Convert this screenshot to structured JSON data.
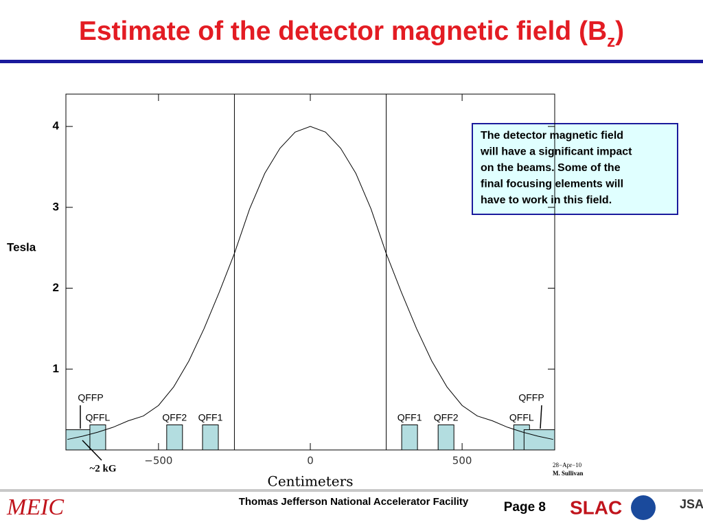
{
  "header": {
    "title": "Estimate of the detector magnetic field (B",
    "title_subscript": "z",
    "title_close": ")"
  },
  "chart_data": {
    "type": "line",
    "x": [
      -800,
      -750,
      -700,
      -650,
      -600,
      -550,
      -500,
      -450,
      -400,
      -350,
      -300,
      -250,
      -200,
      -150,
      -100,
      -50,
      0,
      50,
      100,
      150,
      200,
      250,
      300,
      350,
      400,
      450,
      500,
      550,
      600,
      650,
      700,
      750,
      800
    ],
    "values": [
      0.13,
      0.17,
      0.22,
      0.28,
      0.36,
      0.42,
      0.55,
      0.78,
      1.1,
      1.5,
      1.95,
      2.43,
      2.98,
      3.42,
      3.73,
      3.93,
      4.0,
      3.93,
      3.73,
      3.42,
      2.98,
      2.43,
      1.95,
      1.5,
      1.1,
      0.78,
      0.55,
      0.42,
      0.36,
      0.28,
      0.22,
      0.17,
      0.13
    ],
    "color": "#000000",
    "xlim": [
      -805,
      805
    ],
    "ylim": [
      0,
      4.4
    ],
    "xticks": [
      {
        "value": -500,
        "label": "−500"
      },
      0,
      500
    ],
    "yticks": [
      1,
      2,
      3,
      4
    ],
    "xlabel": "Centimeters",
    "ylabel": "Tesla",
    "vlines": [
      -250,
      250
    ],
    "magnets": [
      {
        "label": "QFFP",
        "x0": -805,
        "x1": -706,
        "height": 0.25
      },
      {
        "label": "QFFL",
        "x0": -726,
        "x1": -674,
        "height": 0.31
      },
      {
        "label": "QFF2",
        "x0": -473,
        "x1": -421,
        "height": 0.31
      },
      {
        "label": "QFF1",
        "x0": -355,
        "x1": -303,
        "height": 0.31
      },
      {
        "label": "QFF1",
        "x0": 301,
        "x1": 353,
        "height": 0.31
      },
      {
        "label": "QFF2",
        "x0": 421,
        "x1": 473,
        "height": 0.31
      },
      {
        "label": "QFFL",
        "x0": 670,
        "x1": 722,
        "height": 0.31
      },
      {
        "label": "QFFP",
        "x0": 704,
        "x1": 805,
        "height": 0.25
      }
    ],
    "magnet_color": "#b3dde0",
    "annotation": "~2 kG",
    "date": "28−Apr−10",
    "author": "M. Sullivan"
  },
  "note": {
    "lines": [
      "The detector magnetic field",
      "will have a significant impact",
      "on the beams. Some of the",
      "final focusing elements will",
      "have to work in this field."
    ]
  },
  "footer": {
    "logo": "MEIC",
    "institution": "Thomas Jefferson National Accelerator Facility",
    "page": "Page 8",
    "logo2": "SLAC",
    "logo3": "JSA"
  }
}
